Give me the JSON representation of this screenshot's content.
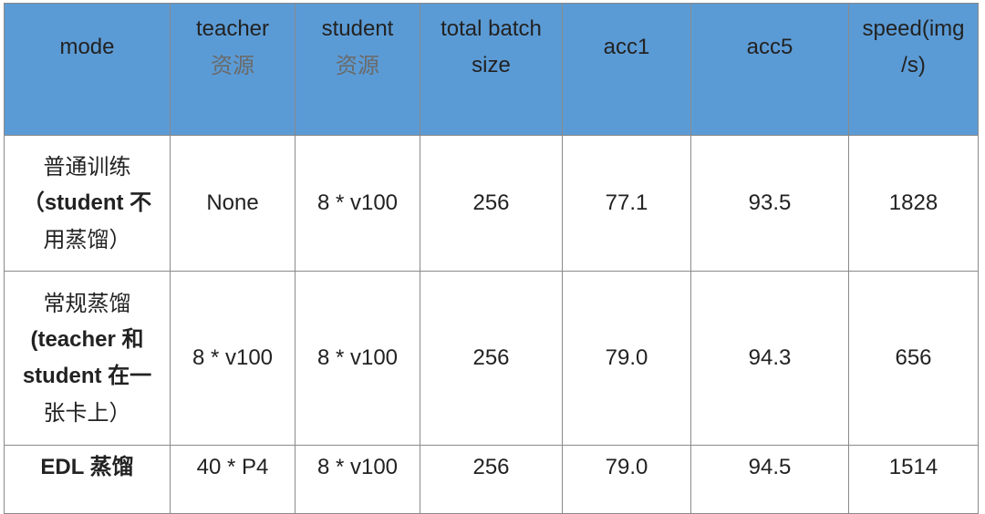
{
  "table": {
    "headers": [
      {
        "line1": "mode",
        "line2": ""
      },
      {
        "line1": "teacher",
        "line2": "资源"
      },
      {
        "line1": "student",
        "line2": "资源"
      },
      {
        "line1": "total batch",
        "line2": "size"
      },
      {
        "line1": "acc1",
        "line2": ""
      },
      {
        "line1": "acc5",
        "line2": ""
      },
      {
        "line1": "speed(img",
        "line2": "/s)"
      }
    ],
    "rows": [
      {
        "mode_lines": [
          "普通训练",
          "（student 不",
          "用蒸馏）"
        ],
        "teacher": "None",
        "student": "8 * v100",
        "total_batch_size": "256",
        "acc1": "77.1",
        "acc5": "93.5",
        "speed": "1828"
      },
      {
        "mode_lines": [
          "常规蒸馏",
          "(teacher 和",
          "student 在一",
          "张卡上）"
        ],
        "teacher": "8 * v100",
        "student": "8 * v100",
        "total_batch_size": "256",
        "acc1": "79.0",
        "acc5": "94.3",
        "speed": "656"
      },
      {
        "mode_lines": [
          "EDL 蒸馏"
        ],
        "teacher": "40 * P4",
        "student": "8 * v100",
        "total_batch_size": "256",
        "acc1": "79.0",
        "acc5": "94.5",
        "speed": "1514"
      }
    ]
  },
  "colors": {
    "header_bg": "#5b9bd5",
    "border": "#8a8a8a",
    "text": "#222222"
  }
}
